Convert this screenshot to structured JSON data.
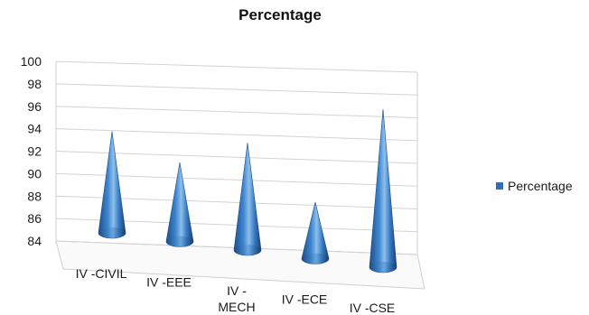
{
  "chart_data": {
    "type": "bar",
    "subtype": "3d-cone",
    "title": "Percentage",
    "xlabel": "",
    "ylabel": "",
    "categories": [
      "IV -CIVIL",
      "IV -EEE",
      "IV - MECH",
      "IV -ECE",
      "IV -CSE"
    ],
    "category_lines": [
      [
        "IV -CIVIL"
      ],
      [
        "IV -EEE"
      ],
      [
        "IV -",
        "MECH"
      ],
      [
        "IV -ECE"
      ],
      [
        "IV -CSE"
      ]
    ],
    "series": [
      {
        "name": "Percentage",
        "values": [
          93,
          91,
          93.5,
          89,
          98
        ],
        "color": "#2e6fb8"
      }
    ],
    "ylim": [
      84,
      100
    ],
    "yticks": [
      84,
      86,
      88,
      90,
      92,
      94,
      96,
      98,
      100
    ],
    "grid": true,
    "legend_position": "right"
  }
}
